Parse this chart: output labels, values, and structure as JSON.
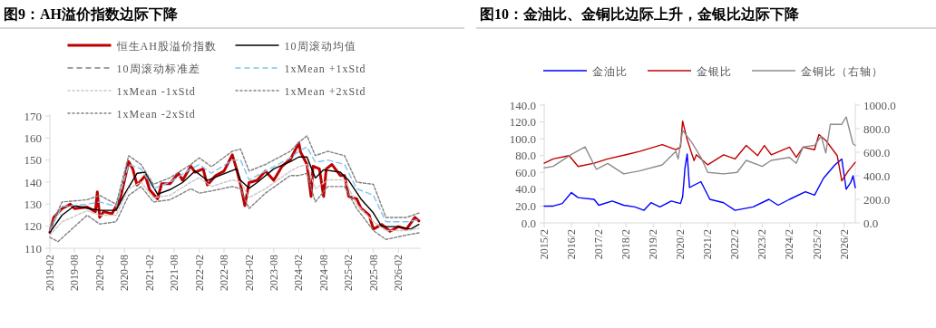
{
  "chart_data": [
    {
      "type": "line",
      "title": "图9：AH溢价指数边际下降",
      "legend": "top",
      "xlim": [
        "2019-02",
        "2026-07-15"
      ],
      "xticks": [
        "2019-02",
        "2019-08",
        "2020-02",
        "2020-08",
        "2021-02",
        "2021-08",
        "2022-02",
        "2022-08",
        "2023-02",
        "2023-08",
        "2024-02",
        "2024-08",
        "2025-02",
        "2025-08",
        "2026-02"
      ],
      "ylim": [
        110,
        170
      ],
      "yticks": [
        110,
        120,
        130,
        140,
        150,
        160,
        170
      ],
      "series": [
        {
          "name": "恒生AH股溢价指数",
          "color": "#c00000",
          "line_style": "solid",
          "x": [
            "2019-02",
            "2019-03",
            "2019-04",
            "2019-05",
            "2019-07",
            "2019-08",
            "2019-11",
            "2020-01",
            "2020-01-15",
            "2020-02",
            "2020-03",
            "2020-05",
            "2020-07",
            "2020-08",
            "2020-09",
            "2020-10",
            "2020-11",
            "2021-01",
            "2021-02",
            "2021-04",
            "2021-05",
            "2021-07",
            "2021-09",
            "2021-10",
            "2021-12",
            "2022-01",
            "2022-03",
            "2022-04",
            "2022-06",
            "2022-08",
            "2022-10",
            "2022-11",
            "2022-12",
            "2023-01",
            "2023-02",
            "2023-04",
            "2023-06",
            "2023-08",
            "2023-10",
            "2023-12",
            "2024-02",
            "2024-02-15",
            "2024-04",
            "2024-05",
            "2024-05-15",
            "2024-07",
            "2024-08",
            "2024-08-20",
            "2024-10",
            "2024-12",
            "2025-01",
            "2025-02",
            "2025-04",
            "2025-05",
            "2025-07",
            "2025-08",
            "2025-10",
            "2025-12",
            "2026-02",
            "2026-04",
            "2026-06",
            "2026-07"
          ],
          "values": [
            117.2,
            124,
            126,
            128,
            130,
            128,
            128.7,
            126.6,
            135.6,
            124,
            126.6,
            125.6,
            132.4,
            140.8,
            149.3,
            146,
            138.7,
            143,
            136.6,
            132.4,
            139.3,
            139.3,
            144,
            140.8,
            147.2,
            144.5,
            146,
            138.7,
            143,
            145,
            152.4,
            146,
            138.7,
            129.3,
            139.8,
            140.8,
            145,
            140.8,
            147.2,
            150.3,
            157.7,
            153.5,
            148,
            133.5,
            147.2,
            146,
            133.5,
            146,
            148,
            143,
            143,
            133.5,
            132.4,
            128.2,
            125,
            118.7,
            120.8,
            117.7,
            119.8,
            118.7,
            124,
            122.4
          ]
        },
        {
          "name": "10周滚动均值",
          "color": "#000000",
          "line_style": "solid",
          "x": [
            "2019-02",
            "2019-05",
            "2019-08",
            "2019-11",
            "2020-02",
            "2020-06",
            "2020-08",
            "2020-11",
            "2021-01",
            "2021-02",
            "2021-04",
            "2021-07",
            "2021-10",
            "2022-01",
            "2022-04",
            "2022-07",
            "2022-11",
            "2022-12",
            "2023-02",
            "2023-04",
            "2023-08",
            "2023-12",
            "2024-02",
            "2024-04",
            "2024-06",
            "2024-08",
            "2024-12",
            "2025-02",
            "2025-05",
            "2025-08",
            "2025-10",
            "2026-02",
            "2026-05",
            "2026-07"
          ],
          "values": [
            117.2,
            125,
            129.3,
            128.2,
            127.2,
            127.2,
            134.5,
            144,
            144.5,
            140.8,
            134.5,
            136.6,
            139.8,
            145,
            140.8,
            143,
            146,
            140.8,
            137.2,
            139.8,
            146,
            149.3,
            151.4,
            151.4,
            141.9,
            145.6,
            144.5,
            140.8,
            132.4,
            126,
            119.8,
            119.8,
            118.7,
            120.8
          ]
        },
        {
          "name": "10周滚动标准差",
          "color": "#808080",
          "line_style": "dashed"
        },
        {
          "name": "1xMean +1xStd",
          "color": "#7fc4f0",
          "line_style": "dashed",
          "x": [
            "2019-02",
            "2019-05",
            "2019-11",
            "2020-02",
            "2020-06",
            "2020-09",
            "2020-12",
            "2021-03",
            "2021-07",
            "2021-12",
            "2022-02",
            "2022-05",
            "2022-10",
            "2022-12",
            "2023-02",
            "2023-06",
            "2023-12",
            "2024-02",
            "2024-04",
            "2024-06",
            "2024-09",
            "2025-01",
            "2025-04",
            "2025-08",
            "2025-11",
            "2026-04",
            "2026-07"
          ],
          "values": [
            118,
            129,
            130,
            131,
            129,
            148,
            146,
            137,
            140,
            146,
            148,
            144,
            150,
            150,
            141,
            145,
            151,
            154,
            156,
            149,
            150,
            148,
            137,
            134,
            122,
            122,
            123
          ]
        },
        {
          "name": "1xMean -1xStd",
          "color": "#c8c8c8",
          "line_style": "dotted",
          "x": [
            "2019-02",
            "2019-05",
            "2019-11",
            "2020-02",
            "2020-06",
            "2020-09",
            "2020-12",
            "2021-03",
            "2021-07",
            "2021-12",
            "2022-02",
            "2022-05",
            "2022-10",
            "2022-12",
            "2023-02",
            "2023-06",
            "2023-12",
            "2024-02",
            "2024-04",
            "2024-06",
            "2024-09",
            "2025-01",
            "2025-04",
            "2025-08",
            "2025-11",
            "2026-04",
            "2026-07"
          ],
          "values": [
            116,
            122,
            127,
            125,
            125,
            137,
            140,
            133,
            134,
            140,
            142,
            138,
            141,
            140,
            133,
            137,
            145,
            147,
            148,
            137,
            141,
            141,
            130,
            122,
            118,
            118,
            119
          ]
        },
        {
          "name": "1xMean +2xStd",
          "color": "#808080",
          "line_style": "dotted",
          "x": [
            "2019-02",
            "2019-05",
            "2019-11",
            "2020-02",
            "2020-06",
            "2020-09",
            "2020-12",
            "2021-03",
            "2021-07",
            "2021-12",
            "2022-02",
            "2022-05",
            "2022-10",
            "2022-12",
            "2023-02",
            "2023-06",
            "2023-12",
            "2024-02",
            "2024-04",
            "2024-06",
            "2024-09",
            "2025-01",
            "2025-04",
            "2025-08",
            "2025-11",
            "2026-04",
            "2026-07"
          ],
          "values": [
            119,
            131,
            132,
            134,
            130,
            152,
            148,
            139,
            142,
            148,
            151,
            147,
            154,
            155,
            145,
            148,
            154,
            158,
            161,
            152,
            154,
            152,
            140,
            139,
            124,
            124,
            126
          ]
        },
        {
          "name": "1xMean -2xStd",
          "color": "#808080",
          "line_style": "dotted",
          "x": [
            "2019-02",
            "2019-04",
            "2019-11",
            "2020-02",
            "2020-06",
            "2020-09",
            "2020-12",
            "2021-03",
            "2021-07",
            "2021-12",
            "2022-02",
            "2022-05",
            "2022-10",
            "2022-12",
            "2023-02",
            "2023-06",
            "2023-12",
            "2024-02",
            "2024-04",
            "2024-06",
            "2024-09",
            "2025-01",
            "2025-04",
            "2025-08",
            "2025-11",
            "2026-04",
            "2026-07"
          ],
          "values": [
            115,
            113,
            125,
            121,
            122,
            134,
            138,
            131,
            132,
            137,
            135,
            136,
            138,
            137,
            128,
            135,
            143,
            143,
            144,
            131,
            138,
            138,
            128,
            118,
            114,
            116,
            117
          ]
        }
      ]
    },
    {
      "type": "line",
      "title": "图10：金油比、金铜比边际上升，金银比边际下降",
      "legend": "top",
      "xlim": [
        "2015-02",
        "2026-07"
      ],
      "xticks": [
        {
          "value": "2015-02",
          "label": "2015/2"
        },
        {
          "value": "2016-02",
          "label": "2016/2"
        },
        {
          "value": "2017-02",
          "label": "2017/2"
        },
        {
          "value": "2018-02",
          "label": "2018/2"
        },
        {
          "value": "2019-02",
          "label": "2019/2"
        },
        {
          "value": "2020-02",
          "label": "2020/2"
        },
        {
          "value": "2021-02",
          "label": "2021/2"
        },
        {
          "value": "2022-02",
          "label": "2022/2"
        },
        {
          "value": "2023-02",
          "label": "2023/2"
        },
        {
          "value": "2024-02",
          "label": "2024/2"
        },
        {
          "value": "2025-02",
          "label": "2025/2"
        },
        {
          "value": "2026-02",
          "label": "2026/2"
        }
      ],
      "ylim": [
        0,
        140
      ],
      "yticks": [
        {
          "value": 0,
          "label": "0.0"
        },
        {
          "value": 20,
          "label": "20.0"
        },
        {
          "value": 40,
          "label": "40.0"
        },
        {
          "value": 60,
          "label": "60.0"
        },
        {
          "value": 80,
          "label": "80.0"
        },
        {
          "value": 100,
          "label": "100.0"
        },
        {
          "value": 120,
          "label": "120.0"
        },
        {
          "value": 140,
          "label": "140.0"
        }
      ],
      "y2lim": [
        0,
        1000
      ],
      "y2ticks": [
        {
          "value": 0,
          "label": "0.0"
        },
        {
          "value": 200,
          "label": "200.0"
        },
        {
          "value": 400,
          "label": "400.0"
        },
        {
          "value": 600,
          "label": "600.0"
        },
        {
          "value": 800,
          "label": "800.0"
        },
        {
          "value": 1000,
          "label": "1000.0"
        }
      ],
      "series": [
        {
          "name": "金油比",
          "color": "#0000ff",
          "line_style": "solid",
          "x": [
            "2015-02",
            "2015-06",
            "2015-10",
            "2016-02",
            "2016-05",
            "2016-12",
            "2017-02",
            "2017-08",
            "2018-01",
            "2018-06",
            "2018-10",
            "2019-01",
            "2019-05",
            "2019-10",
            "2020-02",
            "2020-03",
            "2020-04",
            "2020-05",
            "2020-06",
            "2020-11",
            "2021-03",
            "2021-09",
            "2022-02",
            "2022-10",
            "2023-05",
            "2023-09",
            "2024-02",
            "2024-09",
            "2025-01",
            "2025-05",
            "2025-10",
            "2026-01",
            "2026-03",
            "2026-05",
            "2026-06",
            "2026-07"
          ],
          "values": [
            20,
            20,
            23,
            36,
            30,
            28,
            21,
            26,
            21,
            19,
            15,
            24,
            19,
            26,
            23,
            31,
            65,
            82,
            42,
            49,
            28,
            24,
            15,
            19,
            28,
            21,
            28,
            37,
            33,
            53,
            69,
            76,
            40,
            48,
            56,
            42
          ]
        },
        {
          "name": "金银比",
          "color": "#c00000",
          "line_style": "solid",
          "x": [
            "2015-02",
            "2015-06",
            "2016-01",
            "2016-05",
            "2016-12",
            "2017-06",
            "2018-02",
            "2018-08",
            "2019-06",
            "2019-12",
            "2020-02",
            "2020-03",
            "2020-05",
            "2020-08",
            "2020-09",
            "2021-02",
            "2021-09",
            "2022-02",
            "2022-07",
            "2022-12",
            "2023-03",
            "2023-06",
            "2024-02",
            "2024-05",
            "2024-08",
            "2025-01",
            "2025-03",
            "2025-06",
            "2025-11",
            "2026-01",
            "2026-04",
            "2026-07"
          ],
          "values": [
            71,
            76,
            80,
            67,
            71,
            76,
            81,
            85,
            93,
            87,
            90,
            121,
            99,
            74,
            81,
            69,
            81,
            76,
            92,
            80,
            92,
            81,
            90,
            78,
            90,
            87,
            105,
            98,
            80,
            50,
            62,
            72
          ]
        },
        {
          "name": "金铜比（右轴）",
          "color": "#8c8c8c",
          "line_style": "solid",
          "axis": "y2",
          "x": [
            "2015-02",
            "2015-06",
            "2016-02",
            "2016-08",
            "2017-01",
            "2017-06",
            "2018-01",
            "2018-08",
            "2019-06",
            "2019-12",
            "2020-01",
            "2020-03",
            "2020-07",
            "2020-11",
            "2021-02",
            "2021-09",
            "2022-03",
            "2022-07",
            "2023-02",
            "2023-06",
            "2024-02",
            "2024-05",
            "2024-08",
            "2025-01",
            "2025-04",
            "2025-06",
            "2025-08",
            "2026-01",
            "2026-03",
            "2026-06",
            "2026-07"
          ],
          "values": [
            467,
            480,
            582,
            645,
            454,
            505,
            416,
            441,
            492,
            607,
            543,
            786,
            684,
            556,
            429,
            416,
            429,
            531,
            480,
            531,
            556,
            505,
            645,
            658,
            735,
            594,
            837,
            837,
            900,
            671,
            658
          ]
        }
      ]
    }
  ]
}
